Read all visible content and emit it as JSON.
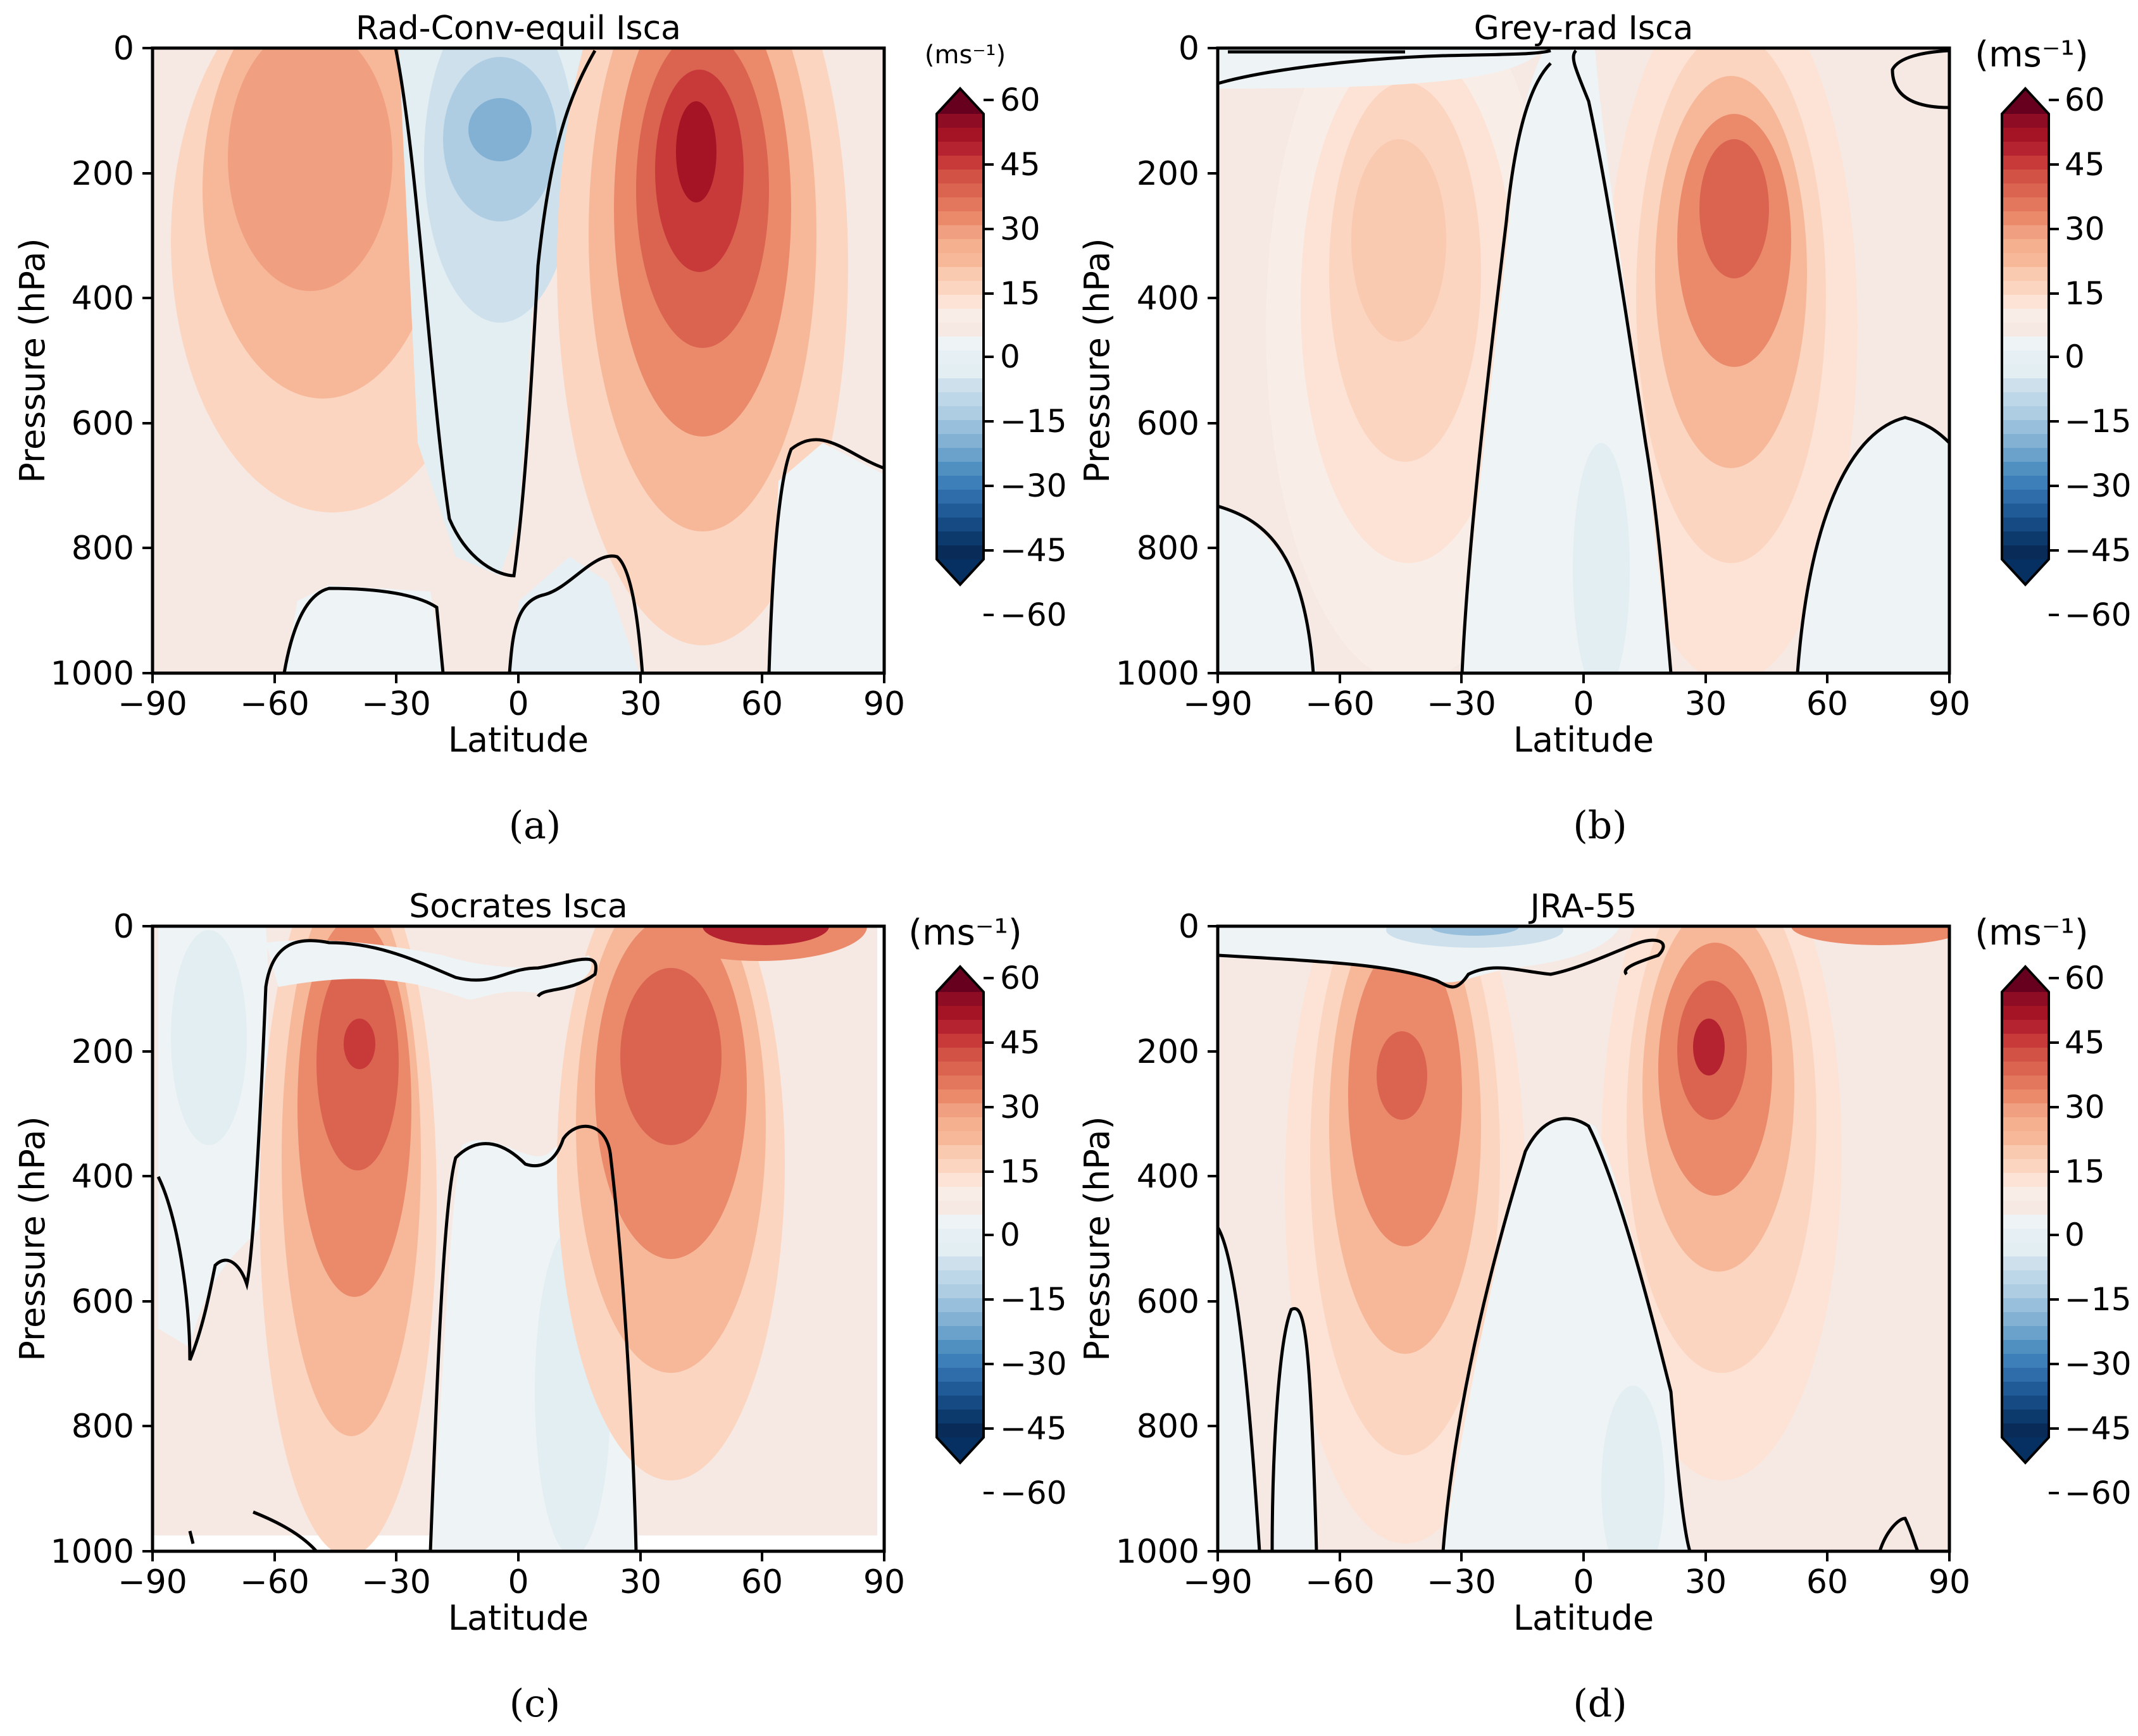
{
  "chart_data": [
    {
      "type": "contour",
      "panel": "(a)",
      "title": "Rad-Conv-equil Isca",
      "xlabel": "Latitude",
      "ylabel": "Pressure (hPa)",
      "xlim": [
        -90,
        90
      ],
      "ylim": [
        1000,
        0
      ],
      "xticks": [
        "−90",
        "−60",
        "−30",
        "0",
        "30",
        "60",
        "90"
      ],
      "yticks": [
        "0",
        "200",
        "400",
        "600",
        "800",
        "1000"
      ],
      "colorbar": {
        "unit": "(ms⁻¹)",
        "range": [
          -60,
          60
        ],
        "step": 5,
        "ticks": [
          "60",
          "45",
          "30",
          "15",
          "0",
          "−15",
          "−30",
          "−45",
          "−60"
        ]
      },
      "jets": [
        {
          "lat": -58,
          "p": 180,
          "u": 22
        },
        {
          "lat": -10,
          "p": 120,
          "u": -20
        },
        {
          "lat": 45,
          "p": 160,
          "u": 58
        }
      ]
    },
    {
      "type": "contour",
      "panel": "(b)",
      "title": "Grey-rad Isca",
      "xlabel": "Latitude",
      "ylabel": "Pressure (hPa)",
      "xlim": [
        -90,
        90
      ],
      "ylim": [
        1000,
        0
      ],
      "xticks": [
        "−90",
        "−60",
        "−30",
        "0",
        "30",
        "60",
        "90"
      ],
      "yticks": [
        "0",
        "200",
        "400",
        "600",
        "800",
        "1000"
      ],
      "colorbar": {
        "unit": "(ms⁻¹)",
        "range": [
          -60,
          60
        ],
        "step": 5,
        "ticks": [
          "60",
          "45",
          "30",
          "15",
          "0",
          "−15",
          "−30",
          "−45",
          "−60"
        ]
      },
      "jets": [
        {
          "lat": -47,
          "p": 280,
          "u": 18
        },
        {
          "lat": 33,
          "p": 260,
          "u": 37
        }
      ]
    },
    {
      "type": "contour",
      "panel": "(c)",
      "title": "Socrates Isca",
      "xlabel": "Latitude",
      "ylabel": "Pressure (hPa)",
      "xlim": [
        -90,
        90
      ],
      "ylim": [
        1000,
        0
      ],
      "xticks": [
        "−90",
        "−60",
        "−30",
        "0",
        "30",
        "60",
        "90"
      ],
      "yticks": [
        "0",
        "200",
        "400",
        "600",
        "800",
        "1000"
      ],
      "colorbar": {
        "unit": "(ms⁻¹)",
        "range": [
          -60,
          60
        ],
        "step": 5,
        "ticks": [
          "60",
          "45",
          "30",
          "15",
          "0",
          "−15",
          "−30",
          "−45",
          "−60"
        ]
      },
      "jets": [
        {
          "lat": -39,
          "p": 200,
          "u": 40
        },
        {
          "lat": 36,
          "p": 190,
          "u": 38
        },
        {
          "lat": 62,
          "p": 10,
          "u": 48
        }
      ]
    },
    {
      "type": "contour",
      "panel": "(d)",
      "title": "JRA-55",
      "xlabel": "Latitude",
      "ylabel": "Pressure (hPa)",
      "xlim": [
        -90,
        90
      ],
      "ylim": [
        1000,
        0
      ],
      "xticks": [
        "−90",
        "−60",
        "−30",
        "0",
        "30",
        "60",
        "90"
      ],
      "yticks": [
        "0",
        "200",
        "400",
        "600",
        "800",
        "1000"
      ],
      "colorbar": {
        "unit": "(ms⁻¹)",
        "range": [
          -60,
          60
        ],
        "step": 5,
        "ticks": [
          "60",
          "45",
          "30",
          "15",
          "0",
          "−15",
          "−30",
          "−45",
          "−60"
        ]
      },
      "jets": [
        {
          "lat": -47,
          "p": 240,
          "u": 35
        },
        {
          "lat": 32,
          "p": 200,
          "u": 44
        },
        {
          "lat": 65,
          "p": 5,
          "u": 28
        },
        {
          "lat": -18,
          "p": 10,
          "u": -14
        }
      ]
    }
  ]
}
